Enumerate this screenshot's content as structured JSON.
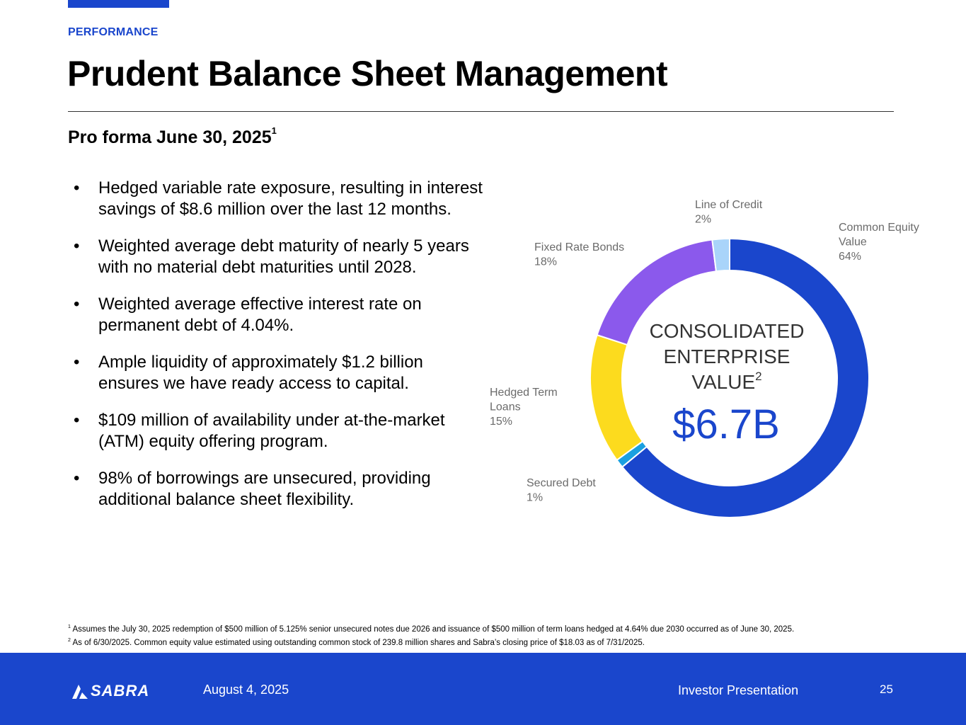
{
  "header": {
    "eyebrow": "PERFORMANCE",
    "title": "Prudent Balance Sheet Management",
    "subtitle": "Pro forma June 30, 2025",
    "subtitle_footnote": "1"
  },
  "bullets": [
    "Hedged variable rate exposure, resulting in interest savings of $8.6 million over the last 12 months.",
    "Weighted average debt maturity of nearly 5 years with no material debt maturities until 2028.",
    "Weighted average effective interest rate on permanent debt of 4.04%.",
    "Ample liquidity of approximately $1.2 billion ensures we have ready access to capital.",
    "$109 million of availability under at-the-market (ATM) equity offering program.",
    "98% of borrowings are unsecured, providing additional balance sheet flexibility."
  ],
  "bullet_glyph": "•",
  "chart_data": {
    "type": "pie",
    "variant": "donut",
    "center_title_lines": [
      "CONSOLIDATED",
      "ENTERPRISE",
      "VALUE"
    ],
    "center_title_footnote": "2",
    "center_value": "$6.7B",
    "slices": [
      {
        "label_lines": [
          "Common Equity",
          "Value"
        ],
        "pct_label": "64%",
        "value": 64,
        "color": "#1A46CC"
      },
      {
        "label_lines": [
          "Secured Debt"
        ],
        "pct_label": "1%",
        "value": 1,
        "color": "#1AA0E0"
      },
      {
        "label_lines": [
          "Hedged Term",
          "Loans"
        ],
        "pct_label": "15%",
        "value": 15,
        "color": "#FCDB1E"
      },
      {
        "label_lines": [
          "Fixed Rate Bonds"
        ],
        "pct_label": "18%",
        "value": 18,
        "color": "#8B59EC"
      },
      {
        "label_lines": [
          "Line of Credit"
        ],
        "pct_label": "2%",
        "value": 2,
        "color": "#A9D4FA"
      }
    ]
  },
  "footnotes": [
    {
      "mark": "1",
      "text": "Assumes the July 30, 2025 redemption of $500 million of 5.125% senior unsecured notes due 2026 and issuance of $500 million of term loans hedged at 4.64% due 2030 occurred as of June 30, 2025."
    },
    {
      "mark": "2",
      "text": "As of 6/30/2025. Common equity value estimated using outstanding common stock of 239.8 million shares and Sabra’s closing price of $18.03 as of 7/31/2025."
    }
  ],
  "footer": {
    "logo_text": "SABRA",
    "date": "August 4, 2025",
    "presentation_title": "Investor Presentation",
    "page_number": "25"
  },
  "colors": {
    "brand_blue": "#1A46CC",
    "label_gray": "#6B6B6B",
    "white": "#FFFFFF"
  }
}
